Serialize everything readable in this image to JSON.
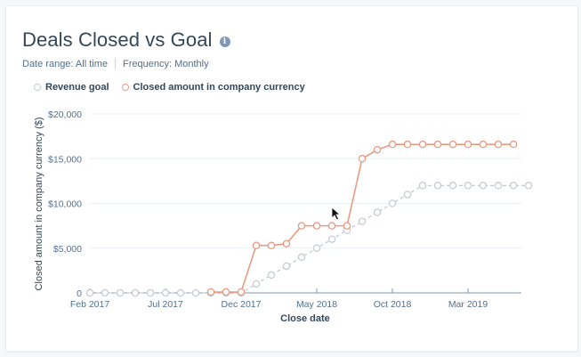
{
  "header": {
    "title": "Deals Closed vs Goal",
    "info_icon": "info-icon",
    "date_range": "Date range: All time",
    "frequency": "Frequency: Monthly"
  },
  "legend": [
    {
      "label": "Revenue goal",
      "color": "#c4ccd6"
    },
    {
      "label": "Closed amount in company currency",
      "color": "#e99a83"
    }
  ],
  "colors": {
    "goal": "#c4ccd6",
    "closed": "#e99a83",
    "axis": "#7c98b6",
    "grid": "#eaf0f6"
  },
  "chart_data": {
    "type": "line",
    "title": "Deals Closed vs Goal",
    "xlabel": "Close date",
    "ylabel": "Closed amount in company currency ($)",
    "ylim": [
      0,
      20000
    ],
    "yticks": [
      "0",
      "$5,000",
      "$10,000",
      "$15,000",
      "$20,000"
    ],
    "ytick_values": [
      0,
      5000,
      10000,
      15000,
      20000
    ],
    "xticks": [
      "Feb 2017",
      "Jul 2017",
      "Dec 2017",
      "May 2018",
      "Oct 2018",
      "Mar 2019"
    ],
    "grid": true,
    "legend_position": "top-left",
    "x": [
      "Feb 2017",
      "Mar 2017",
      "Apr 2017",
      "May 2017",
      "Jun 2017",
      "Jul 2017",
      "Aug 2017",
      "Sep 2017",
      "Oct 2017",
      "Nov 2017",
      "Dec 2017",
      "Jan 2018",
      "Feb 2018",
      "Mar 2018",
      "Apr 2018",
      "May 2018",
      "Jun 2018",
      "Jul 2018",
      "Aug 2018",
      "Sep 2018",
      "Oct 2018",
      "Nov 2018",
      "Dec 2018",
      "Jan 2019",
      "Feb 2019",
      "Mar 2019",
      "Apr 2019",
      "May 2019",
      "Jun 2019",
      "Jul 2019"
    ],
    "series": [
      {
        "name": "Revenue goal",
        "style": "dashed",
        "values": [
          0,
          0,
          0,
          0,
          0,
          0,
          0,
          0,
          0,
          0,
          0,
          1000,
          2000,
          3000,
          4000,
          5000,
          6000,
          7000,
          8000,
          9000,
          10000,
          11000,
          12000,
          12000,
          12000,
          12000,
          12000,
          12000,
          12000,
          12000
        ]
      },
      {
        "name": "Closed amount in company currency",
        "style": "solid",
        "values": [
          null,
          null,
          null,
          null,
          null,
          null,
          null,
          null,
          100,
          100,
          100,
          5300,
          5300,
          5500,
          7500,
          7500,
          7500,
          7500,
          15000,
          16000,
          16600,
          16600,
          16600,
          16600,
          16600,
          16600,
          16600,
          16600,
          16600,
          null
        ]
      }
    ]
  }
}
